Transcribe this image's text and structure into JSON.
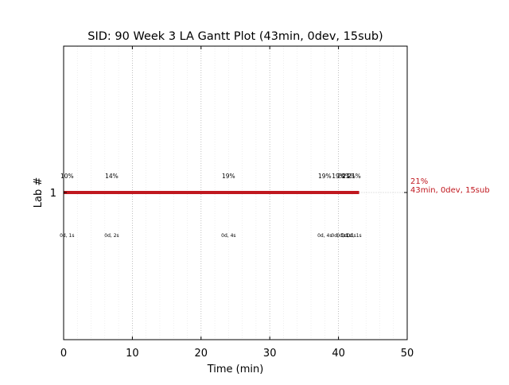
{
  "chart_data": {
    "type": "gantt",
    "title": "SID: 90 Week 3 LA Gantt Plot (43min, 0dev, 15sub)",
    "xlabel": "Time (min)",
    "ylabel": "Lab #",
    "xlim": [
      0,
      50
    ],
    "x_ticks": [
      "0",
      "10",
      "20",
      "30",
      "40",
      "50"
    ],
    "y_ticks": [
      "1"
    ],
    "grid": true,
    "bar_color": "#c0171e",
    "bars": [
      {
        "lab": "1",
        "start": 0,
        "end": 43,
        "end_label_pct": "21%",
        "end_label_summary": "43min, 0dev, 15sub"
      }
    ],
    "submissions": [
      {
        "x": 0.5,
        "pct": "10%",
        "detail": "0d, 1s"
      },
      {
        "x": 7,
        "pct": "14%",
        "detail": "0d, 2s"
      },
      {
        "x": 24,
        "pct": "19%",
        "detail": "0d, 4s"
      },
      {
        "x": 38,
        "pct": "19%",
        "detail": "0d, 4s"
      },
      {
        "x": 40,
        "pct": "19%",
        "detail": "0d, 1s"
      },
      {
        "x": 40.8,
        "pct": "20%",
        "detail": "0d, 1s"
      },
      {
        "x": 41.5,
        "pct": "21%",
        "detail": "0d, 1s"
      },
      {
        "x": 42.3,
        "pct": "21%",
        "detail": "0d, 1s"
      }
    ]
  }
}
